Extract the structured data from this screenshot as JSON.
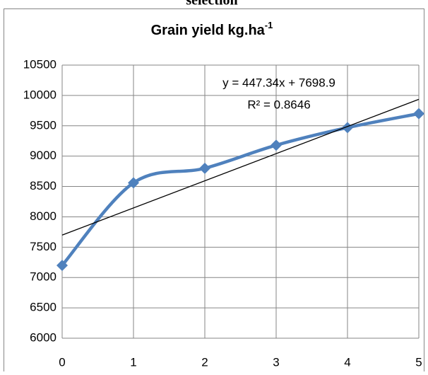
{
  "heading": "selection",
  "chart_data": {
    "type": "line",
    "title": "Grain yield kg.ha",
    "title_superscript": "-1",
    "x": [
      0,
      1,
      2,
      3,
      4,
      5
    ],
    "series": [
      {
        "name": "Grain yield",
        "color": "#4f81bd",
        "values": [
          7200,
          8560,
          8800,
          9180,
          9470,
          9700
        ]
      }
    ],
    "xlim": [
      0,
      5
    ],
    "xticks": [
      0,
      1,
      2,
      3,
      4,
      5
    ],
    "ylim": [
      6000,
      10500
    ],
    "yticks": [
      6000,
      6500,
      7000,
      7500,
      8000,
      8500,
      9000,
      9500,
      10000,
      10500
    ],
    "grid": true,
    "trendline": {
      "equation": "y = 447.34x + 7698.9",
      "r_squared": "R² = 0.8646",
      "slope": 447.34,
      "intercept": 7698.9,
      "color": "#000000"
    }
  }
}
